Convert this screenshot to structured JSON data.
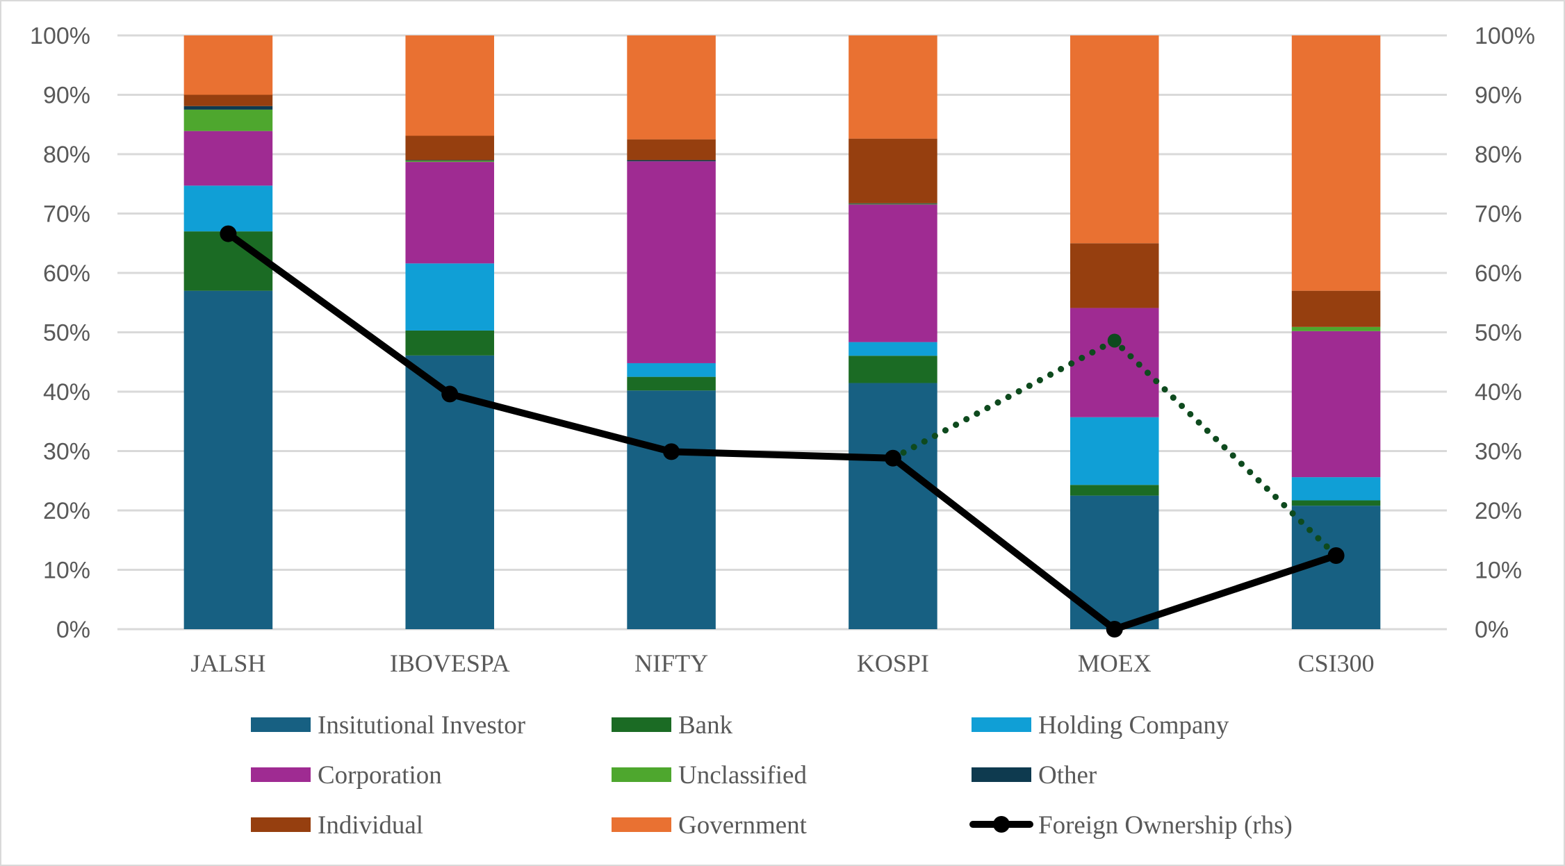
{
  "chart_data": {
    "type": "bar",
    "stacked": "percent",
    "title": "",
    "xlabel": "",
    "ylabel": "",
    "y2label": "",
    "ylim": [
      0,
      100
    ],
    "y2lim": [
      0,
      100
    ],
    "yticks": [
      "0%",
      "10%",
      "20%",
      "30%",
      "40%",
      "50%",
      "60%",
      "70%",
      "80%",
      "90%",
      "100%"
    ],
    "y2ticks": [
      "0%",
      "10%",
      "20%",
      "30%",
      "40%",
      "50%",
      "60%",
      "70%",
      "80%",
      "90%",
      "100%"
    ],
    "grid": true,
    "legend_position": "bottom",
    "categories": [
      "JALSH",
      "IBOVESPA",
      "NIFTY",
      "KOSPI",
      "MOEX",
      "CSI300"
    ],
    "series": [
      {
        "name": "Insitutional Investor",
        "color": "#176082",
        "values": [
          57.0,
          46.1,
          40.2,
          41.5,
          22.5,
          20.8
        ]
      },
      {
        "name": "Bank",
        "color": "#1b6b24",
        "values": [
          10.0,
          4.2,
          2.3,
          4.6,
          1.8,
          0.9
        ]
      },
      {
        "name": "Holding Company",
        "color": "#109fd6",
        "values": [
          7.7,
          11.3,
          2.3,
          2.3,
          11.4,
          3.9
        ]
      },
      {
        "name": "Corporation",
        "color": "#9f2b92",
        "values": [
          9.2,
          17.1,
          34.0,
          23.2,
          18.4,
          24.6
        ]
      },
      {
        "name": "Unclassified",
        "color": "#4ea72e",
        "values": [
          3.6,
          0.2,
          0.0,
          0.1,
          0.0,
          0.7
        ]
      },
      {
        "name": "Other",
        "color": "#0e3a4f",
        "values": [
          0.6,
          0.1,
          0.2,
          0.1,
          0.0,
          0.0
        ]
      },
      {
        "name": "Individual",
        "color": "#963f0f",
        "values": [
          1.9,
          4.1,
          3.5,
          10.9,
          10.9,
          6.1
        ]
      },
      {
        "name": "Government",
        "color": "#e97132",
        "values": [
          10.0,
          16.9,
          17.5,
          17.4,
          35.0,
          43.0
        ]
      }
    ],
    "lines": [
      {
        "name": "Foreign Ownership (rhs)",
        "axis": "right",
        "color": "#000000",
        "style": "solid",
        "marker": "circle",
        "values": [
          66.6,
          39.6,
          29.9,
          28.8,
          0.0,
          12.4
        ]
      },
      {
        "name": "",
        "axis": "right",
        "color": "#0e4a1e",
        "style": "dotted",
        "marker": "circle",
        "in_legend": false,
        "values": [
          null,
          null,
          null,
          28.8,
          48.6,
          12.4
        ]
      }
    ],
    "legend": [
      {
        "label": "Insitutional Investor",
        "kind": "swatch",
        "color": "#176082"
      },
      {
        "label": "Bank",
        "kind": "swatch",
        "color": "#1b6b24"
      },
      {
        "label": "Holding Company",
        "kind": "swatch",
        "color": "#109fd6"
      },
      {
        "label": "Corporation",
        "kind": "swatch",
        "color": "#9f2b92"
      },
      {
        "label": "Unclassified",
        "kind": "swatch",
        "color": "#4ea72e"
      },
      {
        "label": "Other",
        "kind": "swatch",
        "color": "#0e3a4f"
      },
      {
        "label": "Individual",
        "kind": "swatch",
        "color": "#963f0f"
      },
      {
        "label": "Government",
        "kind": "swatch",
        "color": "#e97132"
      },
      {
        "label": "Foreign Ownership (rhs)",
        "kind": "line-marker",
        "color": "#000000"
      }
    ]
  }
}
